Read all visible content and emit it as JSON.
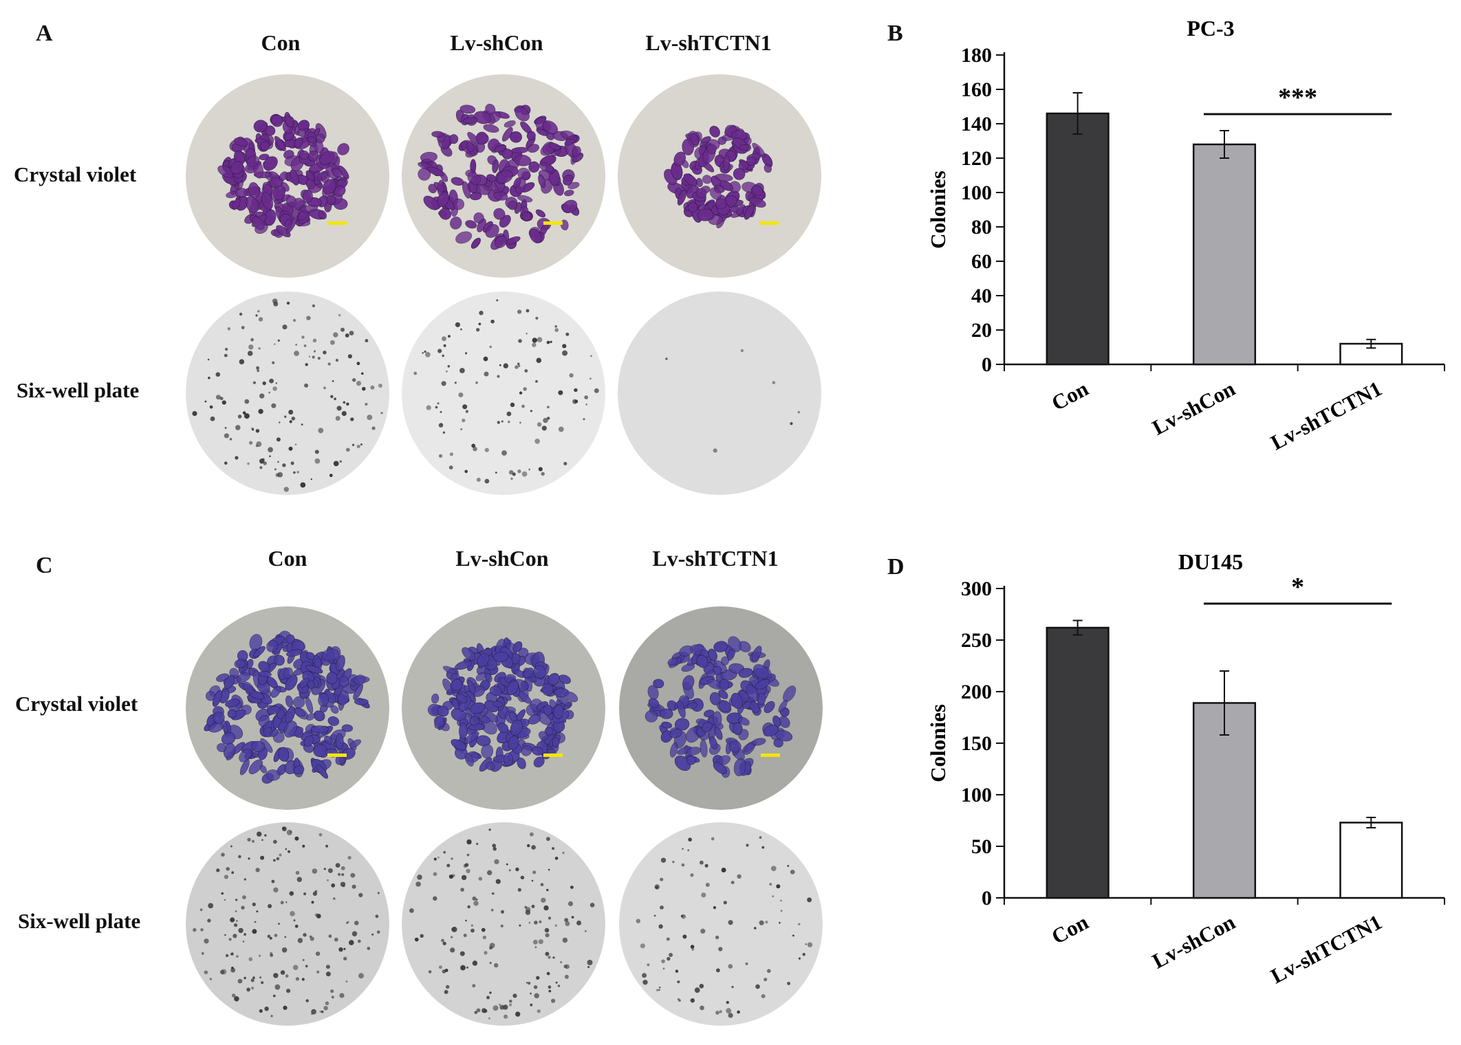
{
  "panels": {
    "A": {
      "letter": "A",
      "columns": [
        "Con",
        "Lv-shCon",
        "Lv-shTCTN1"
      ],
      "rows": [
        "Crystal violet",
        "Six-well plate"
      ]
    },
    "C": {
      "letter": "C",
      "columns": [
        "Con",
        "Lv-shCon",
        "Lv-shTCTN1"
      ],
      "rows": [
        "Crystal violet",
        "Six-well plate"
      ]
    },
    "B": {
      "letter": "B"
    },
    "D": {
      "letter": "D"
    }
  },
  "colors": {
    "con_bar": "#3a3a3c",
    "shcon_bar": "#a9a9ad",
    "shtctn1_bar": "#ffffff",
    "crystal_violet_A": "#6a2b8c",
    "crystal_violet_C": "#4a3fa0",
    "scale_bar": "#f2e600"
  },
  "chart_data": [
    {
      "type": "bar",
      "title": "PC-3",
      "ylabel": "Colonies",
      "xlabel": "",
      "categories": [
        "Con",
        "Lv-shCon",
        "Lv-shTCTN1"
      ],
      "values": [
        146,
        128,
        12
      ],
      "errors": [
        12,
        8,
        2.5
      ],
      "ylim": [
        0,
        180
      ],
      "yticks": [
        "0",
        "20",
        "40",
        "60",
        "80",
        "100",
        "120",
        "140",
        "160",
        "180"
      ],
      "ytick_values": [
        0,
        20,
        40,
        60,
        80,
        100,
        120,
        140,
        160,
        180
      ],
      "significance": {
        "label": "***",
        "from": "Lv-shCon",
        "to": "Lv-shTCTN1"
      },
      "grid": false
    },
    {
      "type": "bar",
      "title": "DU145",
      "ylabel": "Colonies",
      "xlabel": "",
      "categories": [
        "Con",
        "Lv-shCon",
        "Lv-shTCTN1"
      ],
      "values": [
        262,
        189,
        73
      ],
      "errors": [
        7,
        31,
        5
      ],
      "ylim": [
        0,
        300
      ],
      "yticks": [
        "0",
        "50",
        "100",
        "150",
        "200",
        "250",
        "300"
      ],
      "ytick_values": [
        0,
        50,
        100,
        150,
        200,
        250,
        300
      ],
      "significance": {
        "label": "*",
        "from": "Lv-shCon",
        "to": "Lv-shTCTN1"
      },
      "grid": false
    }
  ]
}
